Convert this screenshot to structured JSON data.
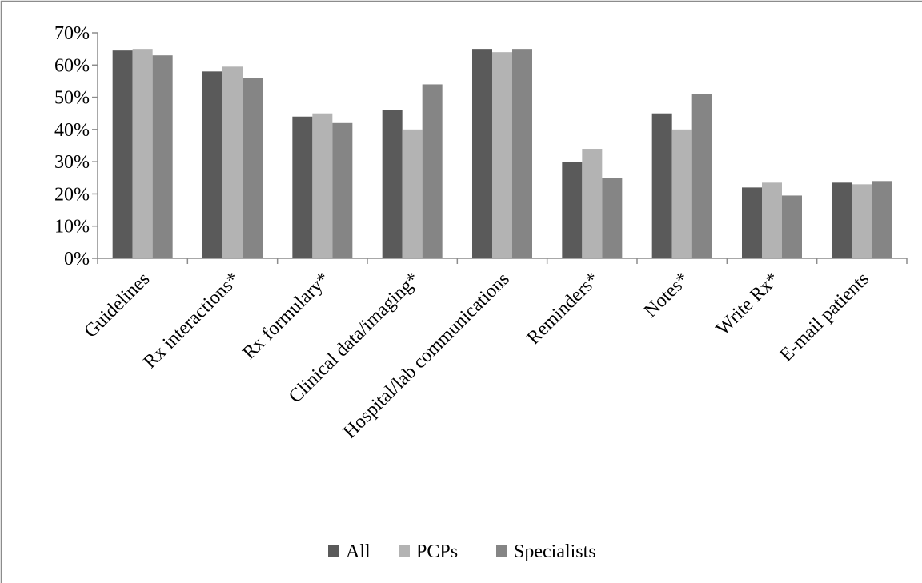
{
  "chart_data": {
    "type": "bar",
    "title": "",
    "xlabel": "",
    "ylabel": "",
    "ylim": [
      0,
      70
    ],
    "y_ticks": [
      0,
      10,
      20,
      30,
      40,
      50,
      60,
      70
    ],
    "y_tick_suffix": "%",
    "grid": false,
    "legend_position": "bottom",
    "categories": [
      "Guidelines",
      "Rx interactions*",
      "Rx formulary*",
      "Clinical data/imaging*",
      "Hospital/lab communications",
      "Reminders*",
      "Notes*",
      "Write Rx*",
      "E-mail patients"
    ],
    "series": [
      {
        "name": "All",
        "color": "#5a5a5a",
        "values": [
          64.5,
          58,
          44,
          46,
          65,
          30,
          45,
          22,
          23.5
        ]
      },
      {
        "name": "PCPs",
        "color": "#b3b3b3",
        "values": [
          65,
          59.5,
          45,
          40,
          64,
          34,
          40,
          23.5,
          23
        ]
      },
      {
        "name": "Specialists",
        "color": "#858585",
        "values": [
          63,
          56,
          42,
          54,
          65,
          25,
          51,
          19.5,
          24
        ]
      }
    ]
  }
}
